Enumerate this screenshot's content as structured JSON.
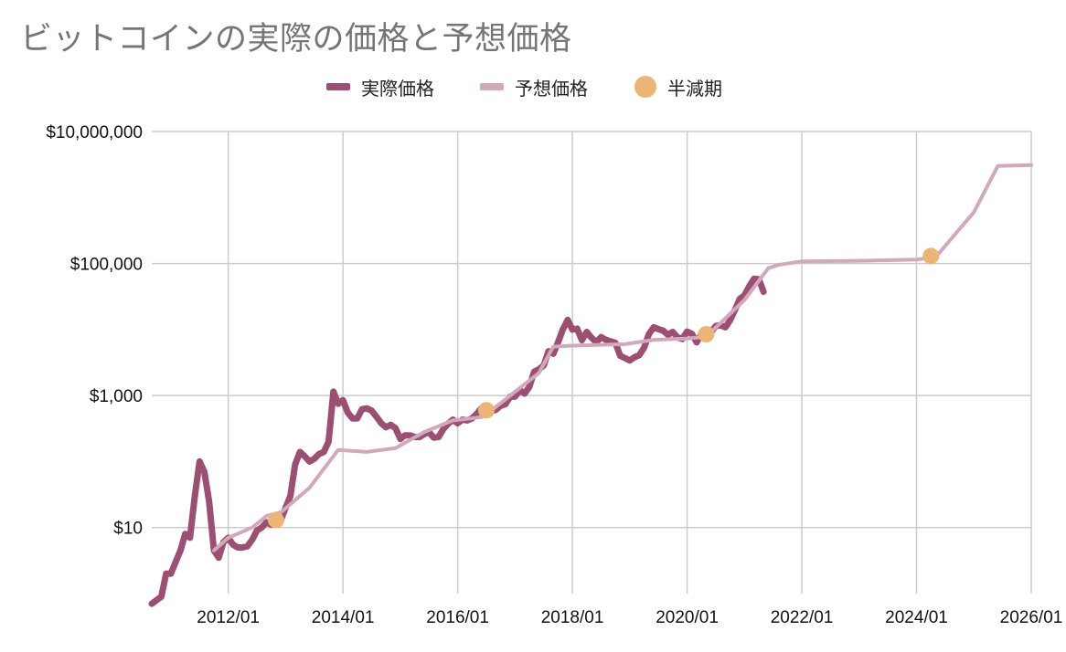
{
  "chart_data": {
    "type": "line",
    "title": "ビットコインの実際の価格と予想価格",
    "y_scale": "log",
    "ylim": [
      1,
      10000000
    ],
    "xlim": [
      "2010-09",
      "2026-01"
    ],
    "y_ticks": [
      {
        "value": 10,
        "label": "$10"
      },
      {
        "value": 1000,
        "label": "$1,000"
      },
      {
        "value": 100000,
        "label": "$100,000"
      },
      {
        "value": 10000000,
        "label": "$10,000,000"
      }
    ],
    "x_ticks": [
      {
        "value": "2012-01",
        "label": "2012/01"
      },
      {
        "value": "2014-01",
        "label": "2014/01"
      },
      {
        "value": "2016-01",
        "label": "2016/01"
      },
      {
        "value": "2018-01",
        "label": "2018/01"
      },
      {
        "value": "2020-01",
        "label": "2020/01"
      },
      {
        "value": "2022-01",
        "label": "2022/01"
      },
      {
        "value": "2024-01",
        "label": "2024/01"
      },
      {
        "value": "2026-01",
        "label": "2026/01"
      }
    ],
    "grid": true,
    "legend_position": "top",
    "series": [
      {
        "name": "実際価格",
        "type": "line",
        "color": "#9c4f73",
        "points": [
          [
            "2010-09",
            0.7
          ],
          [
            "2010-11",
            0.9
          ],
          [
            "2010-12",
            2.0
          ],
          [
            "2011-01",
            2.0
          ],
          [
            "2011-02",
            3.0
          ],
          [
            "2011-03",
            4.5
          ],
          [
            "2011-04",
            8
          ],
          [
            "2011-05",
            7
          ],
          [
            "2011-06",
            30
          ],
          [
            "2011-07",
            100
          ],
          [
            "2011-08",
            70
          ],
          [
            "2011-09",
            25
          ],
          [
            "2011-10",
            4.5
          ],
          [
            "2011-11",
            3.5
          ],
          [
            "2011-12",
            6
          ],
          [
            "2012-01",
            7
          ],
          [
            "2012-02",
            5.5
          ],
          [
            "2012-03",
            5
          ],
          [
            "2012-04",
            5
          ],
          [
            "2012-05",
            5.2
          ],
          [
            "2012-06",
            6.5
          ],
          [
            "2012-07",
            9
          ],
          [
            "2012-08",
            10
          ],
          [
            "2012-09",
            12
          ],
          [
            "2012-10",
            11
          ],
          [
            "2012-11",
            12
          ],
          [
            "2012-12",
            13
          ],
          [
            "2013-01",
            20
          ],
          [
            "2013-02",
            30
          ],
          [
            "2013-03",
            90
          ],
          [
            "2013-04",
            140
          ],
          [
            "2013-05",
            120
          ],
          [
            "2013-06",
            100
          ],
          [
            "2013-07",
            110
          ],
          [
            "2013-08",
            130
          ],
          [
            "2013-09",
            140
          ],
          [
            "2013-10",
            200
          ],
          [
            "2013-11",
            1150
          ],
          [
            "2013-12",
            750
          ],
          [
            "2014-01",
            850
          ],
          [
            "2014-02",
            550
          ],
          [
            "2014-03",
            450
          ],
          [
            "2014-04",
            450
          ],
          [
            "2014-05",
            620
          ],
          [
            "2014-06",
            640
          ],
          [
            "2014-07",
            590
          ],
          [
            "2014-08",
            480
          ],
          [
            "2014-09",
            380
          ],
          [
            "2014-10",
            330
          ],
          [
            "2014-11",
            360
          ],
          [
            "2014-12",
            320
          ],
          [
            "2015-01",
            220
          ],
          [
            "2015-02",
            250
          ],
          [
            "2015-03",
            250
          ],
          [
            "2015-04",
            235
          ],
          [
            "2015-05",
            235
          ],
          [
            "2015-06",
            260
          ],
          [
            "2015-07",
            280
          ],
          [
            "2015-08",
            230
          ],
          [
            "2015-09",
            235
          ],
          [
            "2015-10",
            310
          ],
          [
            "2015-11",
            375
          ],
          [
            "2015-12",
            430
          ],
          [
            "2016-01",
            380
          ],
          [
            "2016-02",
            430
          ],
          [
            "2016-03",
            420
          ],
          [
            "2016-04",
            450
          ],
          [
            "2016-05",
            530
          ],
          [
            "2016-06",
            650
          ],
          [
            "2016-07",
            620
          ],
          [
            "2016-08",
            580
          ],
          [
            "2016-09",
            610
          ],
          [
            "2016-10",
            700
          ],
          [
            "2016-11",
            740
          ],
          [
            "2016-12",
            960
          ],
          [
            "2017-01",
            960
          ],
          [
            "2017-02",
            1200
          ],
          [
            "2017-03",
            1070
          ],
          [
            "2017-04",
            1350
          ],
          [
            "2017-05",
            2300
          ],
          [
            "2017-06",
            2500
          ],
          [
            "2017-07",
            2850
          ],
          [
            "2017-08",
            4700
          ],
          [
            "2017-09",
            4300
          ],
          [
            "2017-10",
            6400
          ],
          [
            "2017-11",
            10000
          ],
          [
            "2017-12",
            14000
          ],
          [
            "2018-01",
            10000
          ],
          [
            "2018-02",
            10300
          ],
          [
            "2018-03",
            6900
          ],
          [
            "2018-04",
            9200
          ],
          [
            "2018-05",
            7500
          ],
          [
            "2018-06",
            6400
          ],
          [
            "2018-07",
            7700
          ],
          [
            "2018-08",
            7000
          ],
          [
            "2018-09",
            6600
          ],
          [
            "2018-10",
            6300
          ],
          [
            "2018-11",
            4000
          ],
          [
            "2018-12",
            3700
          ],
          [
            "2019-01",
            3400
          ],
          [
            "2019-02",
            3800
          ],
          [
            "2019-03",
            4100
          ],
          [
            "2019-04",
            5300
          ],
          [
            "2019-05",
            8500
          ],
          [
            "2019-06",
            10800
          ],
          [
            "2019-07",
            10100
          ],
          [
            "2019-08",
            9600
          ],
          [
            "2019-09",
            8300
          ],
          [
            "2019-10",
            9200
          ],
          [
            "2019-11",
            7600
          ],
          [
            "2019-12",
            7200
          ],
          [
            "2020-01",
            9300
          ],
          [
            "2020-02",
            8600
          ],
          [
            "2020-03",
            6400
          ],
          [
            "2020-04",
            8600
          ],
          [
            "2020-05",
            9500
          ],
          [
            "2020-06",
            9100
          ],
          [
            "2020-07",
            11300
          ],
          [
            "2020-08",
            11600
          ],
          [
            "2020-09",
            10800
          ],
          [
            "2020-10",
            13800
          ],
          [
            "2020-11",
            19700
          ],
          [
            "2020-12",
            29000
          ],
          [
            "2021-01",
            33000
          ],
          [
            "2021-02",
            45000
          ],
          [
            "2021-03",
            58800
          ],
          [
            "2021-04",
            57700
          ],
          [
            "2021-05",
            37300
          ]
        ]
      },
      {
        "name": "予想価格",
        "type": "line",
        "color": "#d2a8bd",
        "points": [
          [
            "2011-10",
            4.5
          ],
          [
            "2012-01",
            7
          ],
          [
            "2012-06",
            10
          ],
          [
            "2012-09",
            15
          ],
          [
            "2012-12",
            17
          ],
          [
            "2013-06",
            40
          ],
          [
            "2013-12",
            150
          ],
          [
            "2014-06",
            140
          ],
          [
            "2014-12",
            160
          ],
          [
            "2015-06",
            280
          ],
          [
            "2015-12",
            420
          ],
          [
            "2016-06",
            470
          ],
          [
            "2016-08",
            590
          ],
          [
            "2017-06",
            2200
          ],
          [
            "2017-09",
            5500
          ],
          [
            "2018-01",
            5700
          ],
          [
            "2018-12",
            6000
          ],
          [
            "2019-06",
            7000
          ],
          [
            "2020-01",
            7300
          ],
          [
            "2020-05",
            7800
          ],
          [
            "2021-01",
            28000
          ],
          [
            "2021-06",
            85000
          ],
          [
            "2021-08",
            95000
          ],
          [
            "2022-01",
            108000
          ],
          [
            "2023-01",
            110000
          ],
          [
            "2024-01",
            115000
          ],
          [
            "2024-05",
            125000
          ],
          [
            "2025-01",
            600000
          ],
          [
            "2025-06",
            3000000
          ],
          [
            "2026-01",
            3100000
          ]
        ]
      },
      {
        "name": "半減期",
        "type": "scatter",
        "color": "#ecb575",
        "points": [
          [
            "2012-11",
            13
          ],
          [
            "2016-07",
            600
          ],
          [
            "2020-05",
            8500
          ],
          [
            "2024-04",
            130000
          ]
        ]
      }
    ]
  }
}
